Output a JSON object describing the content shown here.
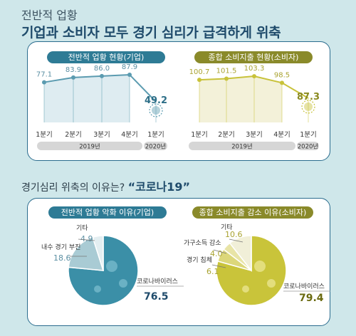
{
  "header": {
    "subtitle": "전반적 업황",
    "title": "기업과 소비자 모두 경기 심리가 급격하게 위축"
  },
  "question": {
    "text": "경기심리 위축의 이유는?",
    "highlight": "“코로나19”"
  },
  "chart_data": [
    {
      "type": "line",
      "title": "전반적 업황 현황(기업)",
      "categories": [
        "1분기",
        "2분기",
        "3분기",
        "4분기",
        "1분기"
      ],
      "years": [
        {
          "label": "2019년",
          "span": 4
        },
        {
          "label": "2020년",
          "span": 1
        }
      ],
      "values": [
        77.1,
        83.9,
        86.0,
        87.9,
        49.2
      ],
      "value_labels": [
        "77.1",
        "83.9",
        "86.0",
        "87.9",
        "49.2"
      ],
      "color": "#5b9bb0",
      "ylim": [
        40,
        95
      ]
    },
    {
      "type": "line",
      "title": "종합 소비지출 현황(소비자)",
      "categories": [
        "1분기",
        "2분기",
        "3분기",
        "4분기",
        "1분기"
      ],
      "years": [
        {
          "label": "2019년",
          "span": 4
        },
        {
          "label": "2020년",
          "span": 1
        }
      ],
      "values": [
        100.7,
        101.5,
        103.3,
        98.5,
        87.3
      ],
      "value_labels": [
        "100.7",
        "101.5",
        "103.3",
        "98.5",
        "87.3"
      ],
      "color": "#c8c23a",
      "ylim": [
        80,
        108
      ]
    },
    {
      "type": "pie",
      "title": "전반적 업황 악화 이유(기업)",
      "slices": [
        {
          "label": "코로나바이러스",
          "value": 76.5,
          "value_label": "76.5"
        },
        {
          "label": "내수 경기 부진",
          "value": 18.6,
          "value_label": "18.6"
        },
        {
          "label": "기타",
          "value": 4.9,
          "value_label": "4.9"
        }
      ],
      "colors": [
        "#3b8fa7",
        "#a9cbd4",
        "#e3eef1"
      ]
    },
    {
      "type": "pie",
      "title": "종합 소비지출 감소 이유(소비자)",
      "slices": [
        {
          "label": "코로나바이러스",
          "value": 79.4,
          "value_label": "79.4"
        },
        {
          "label": "경기 침체",
          "value": 6.1,
          "value_label": "6.1"
        },
        {
          "label": "가구소득 감소",
          "value": 4.0,
          "value_label": "4.0"
        },
        {
          "label": "기타",
          "value": 10.6,
          "value_label": "10.6"
        }
      ],
      "colors": [
        "#c9c43a",
        "#dcd77a",
        "#e8e4a6",
        "#f1efd8"
      ]
    }
  ]
}
